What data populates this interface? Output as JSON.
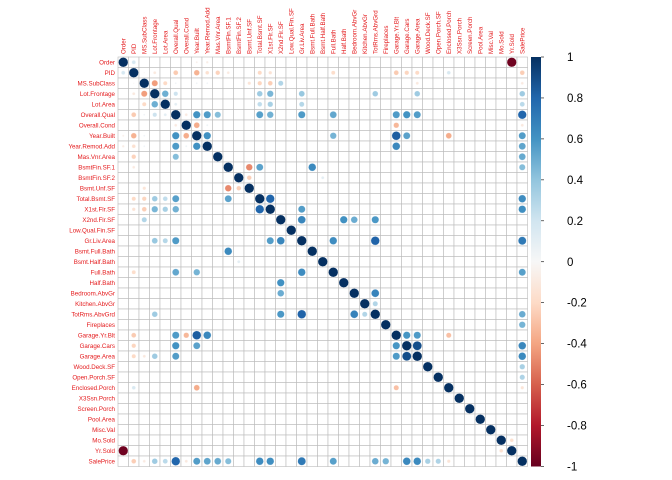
{
  "chart_data": {
    "type": "heatmap",
    "variables": [
      "Order",
      "PID",
      "MS.SubClass",
      "Lot.Frontage",
      "Lot.Area",
      "Overall.Qual",
      "Overall.Cond",
      "Year.Built",
      "Year.Remod.Add",
      "Mas.Vnr.Area",
      "BsmtFin.SF.1",
      "BsmtFin.SF.2",
      "Bsmt.Unf.SF",
      "Total.Bsmt.SF",
      "X1st.Flr.SF",
      "X2nd.Flr.SF",
      "Low.Qual.Fin.SF",
      "Gr.Liv.Area",
      "Bsmt.Full.Bath",
      "Bsmt.Half.Bath",
      "Full.Bath",
      "Half.Bath",
      "Bedroom.AbvGr",
      "Kitchen.AbvGr",
      "TotRms.AbvGrd",
      "Fireplaces",
      "Garage.Yr.Blt",
      "Garage.Cars",
      "Garage.Area",
      "Wood.Deck.SF",
      "Open.Porch.SF",
      "Enclosed.Porch",
      "X3Ssn.Porch",
      "Screen.Porch",
      "Pool.Area",
      "Misc.Val",
      "Mo.Sold",
      "Yr.Sold",
      "SalePrice"
    ],
    "correlations": {
      "Order|PID": 0.17,
      "Order|Year.Built": -0.05,
      "Order|Year.Remod.Add": -0.07,
      "Order|Yr.Sold": -0.98,
      "PID|MS.SubClass": -0.02,
      "PID|Lot.Frontage": -0.1,
      "PID|Overall.Qual": -0.26,
      "PID|Year.Built": -0.35,
      "PID|Year.Remod.Add": -0.16,
      "PID|Mas.Vnr.Area": -0.23,
      "PID|BsmtFin.SF.1": -0.09,
      "PID|Total.Bsmt.SF": -0.2,
      "PID|X1st.Flr.SF": -0.14,
      "PID|Full.Bath": -0.18,
      "PID|Garage.Yr.Blt": -0.26,
      "PID|Garage.Cars": -0.22,
      "PID|Garage.Area": -0.2,
      "PID|Enclosed.Porch": 0.16,
      "PID|SalePrice": -0.25,
      "MS.SubClass|Lot.Frontage": -0.42,
      "MS.SubClass|Lot.Area": -0.2,
      "MS.SubClass|Overall.Qual": 0.04,
      "MS.SubClass|Year.Built": 0.04,
      "MS.SubClass|Year.Remod.Add": 0.04,
      "MS.SubClass|Total.Bsmt.SF": -0.22,
      "MS.SubClass|X1st.Flr.SF": -0.25,
      "MS.SubClass|X2nd.Flr.SF": 0.3,
      "MS.SubClass|Bsmt.Unf.SF": -0.13,
      "MS.SubClass|Garage.Area": -0.1,
      "MS.SubClass|SalePrice": -0.09,
      "Lot.Frontage|Lot.Area": 0.49,
      "Lot.Frontage|Overall.Qual": 0.21,
      "Lot.Frontage|Total.Bsmt.SF": 0.36,
      "Lot.Frontage|X1st.Flr.SF": 0.46,
      "Lot.Frontage|Gr.Liv.Area": 0.38,
      "Lot.Frontage|TotRms.AbvGrd": 0.36,
      "Lot.Frontage|Garage.Area": 0.36,
      "Lot.Frontage|SalePrice": 0.36,
      "Lot.Area|Overall.Qual": 0.1,
      "Lot.Area|Total.Bsmt.SF": 0.25,
      "Lot.Area|X1st.Flr.SF": 0.33,
      "Lot.Area|Gr.Liv.Area": 0.29,
      "Lot.Area|SalePrice": 0.27,
      "Overall.Qual|Overall.Cond": -0.09,
      "Overall.Qual|Year.Built": 0.6,
      "Overall.Qual|Year.Remod.Add": 0.57,
      "Overall.Qual|Mas.Vnr.Area": 0.43,
      "Overall.Qual|Total.Bsmt.SF": 0.55,
      "Overall.Qual|X1st.Flr.SF": 0.48,
      "Overall.Qual|Gr.Liv.Area": 0.57,
      "Overall.Qual|Full.Bath": 0.52,
      "Overall.Qual|Garage.Yr.Blt": 0.57,
      "Overall.Qual|Garage.Cars": 0.6,
      "Overall.Qual|Garage.Area": 0.56,
      "Overall.Qual|SalePrice": 0.8,
      "Overall.Cond|Year.Built": -0.37,
      "Overall.Cond|Year.Remod.Add": 0.05,
      "Overall.Cond|Garage.Yr.Blt": -0.33,
      "Overall.Cond|SalePrice": -0.1,
      "Year.Built|Year.Remod.Add": 0.61,
      "Year.Built|Garage.Yr.Blt": 0.83,
      "Year.Built|Garage.Cars": 0.54,
      "Year.Built|Full.Bath": 0.47,
      "Year.Built|Enclosed.Porch": -0.37,
      "Year.Built|SalePrice": 0.56,
      "Year.Remod.Add|Garage.Yr.Blt": 0.65,
      "Year.Remod.Add|SalePrice": 0.53,
      "Mas.Vnr.Area|SalePrice": 0.51,
      "BsmtFin.SF.1|Bsmt.Unf.SF": -0.48,
      "BsmtFin.SF.1|Total.Bsmt.SF": 0.54,
      "BsmtFin.SF.1|Bsmt.Full.Bath": 0.64,
      "BsmtFin.SF.1|SalePrice": 0.43,
      "BsmtFin.SF.2|Bsmt.Unf.SF": -0.24,
      "BsmtFin.SF.2|Bsmt.Half.Bath": 0.1,
      "Total.Bsmt.SF|X1st.Flr.SF": 0.8,
      "Total.Bsmt.SF|SalePrice": 0.63,
      "X1st.Flr.SF|Gr.Liv.Area": 0.56,
      "X1st.Flr.SF|SalePrice": 0.62,
      "X2nd.Flr.SF|Gr.Liv.Area": 0.66,
      "X2nd.Flr.SF|Half.Bath": 0.61,
      "X2nd.Flr.SF|Bedroom.AbvGr": 0.5,
      "X2nd.Flr.SF|TotRms.AbvGrd": 0.58,
      "Gr.Liv.Area|Full.Bath": 0.63,
      "Gr.Liv.Area|TotRms.AbvGrd": 0.81,
      "Gr.Liv.Area|SalePrice": 0.71,
      "Full.Bath|SalePrice": 0.55,
      "Bedroom.AbvGr|TotRms.AbvGrd": 0.67,
      "Kitchen.AbvGr|TotRms.AbvGrd": 0.3,
      "TotRms.AbvGrd|SalePrice": 0.5,
      "Fireplaces|SalePrice": 0.47,
      "Garage.Yr.Blt|Garage.Cars": 0.59,
      "Garage.Yr.Blt|Garage.Area": 0.57,
      "Garage.Cars|Garage.Area": 0.89,
      "Garage.Cars|SalePrice": 0.65,
      "Garage.Area|SalePrice": 0.64,
      "Wood.Deck.SF|SalePrice": 0.33,
      "Open.Porch.SF|SalePrice": 0.31,
      "Enclosed.Porch|Garage.Yr.Blt": -0.3,
      "Enclosed.Porch|SalePrice": -0.13,
      "Mo.Sold|Yr.Sold": -0.16
    },
    "colorbar": {
      "range": [
        -1,
        1
      ],
      "ticks": [
        -1,
        -0.8,
        -0.6,
        -0.4,
        -0.2,
        0,
        0.2,
        0.4,
        0.6,
        0.8,
        1
      ],
      "tick_labels": [
        "-1",
        "-0.8",
        "-0.6",
        "-0.4",
        "-0.2",
        "0",
        "0.2",
        "0.4",
        "0.6",
        "0.8",
        "1"
      ]
    },
    "colors": {
      "negative": "#67001f",
      "neutral": "#f7f7f7",
      "positive": "#053061",
      "label": "#e41a1c",
      "grid": "#bbbbbb"
    }
  }
}
